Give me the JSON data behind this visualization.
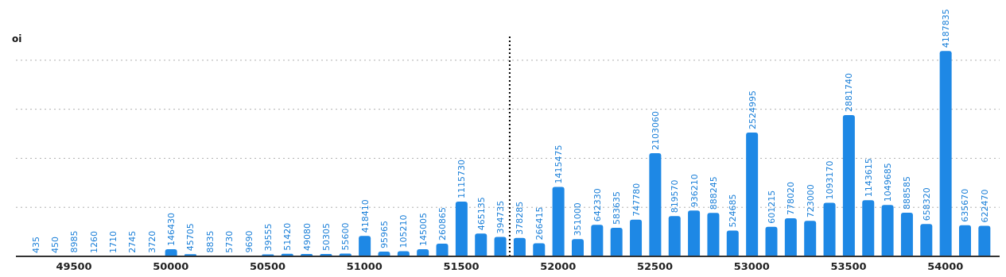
{
  "chart_data": {
    "type": "bar",
    "ylabel": "oi",
    "x": [
      49300,
      49400,
      49500,
      49600,
      49700,
      49800,
      49900,
      50000,
      50100,
      50200,
      50300,
      50400,
      50500,
      50600,
      50700,
      50800,
      50900,
      51000,
      51100,
      51200,
      51300,
      51400,
      51500,
      51600,
      51700,
      51800,
      51900,
      52000,
      52100,
      52200,
      52300,
      52400,
      52500,
      52600,
      52700,
      52800,
      52900,
      53000,
      53100,
      53200,
      53300,
      53400,
      53500,
      53600,
      53700,
      53800,
      53900,
      54000,
      54100,
      54200
    ],
    "values": [
      435,
      450,
      8985,
      1260,
      1710,
      2745,
      3720,
      146430,
      45705,
      8835,
      5730,
      9690,
      39555,
      51420,
      49080,
      50305,
      55600,
      418410,
      95965,
      105210,
      145005,
      260865,
      1115730,
      465135,
      394735,
      378285,
      266415,
      1415475,
      351000,
      642330,
      583635,
      747780,
      2103060,
      819570,
      936210,
      888245,
      524685,
      2524995,
      601215,
      778020,
      723000,
      1093170,
      2881740,
      1143615,
      1049685,
      888585,
      658320,
      4187835,
      635670,
      622470
    ],
    "color": "#1e88e5",
    "data_labels": true,
    "xlim": [
      49200,
      54280
    ],
    "xticks": [
      49500,
      50000,
      50500,
      51000,
      51500,
      52000,
      52500,
      53000,
      53500,
      54000
    ],
    "ylim": [
      0,
      4500000
    ],
    "yticks": [
      {
        "value": 1000000,
        "label": null
      },
      {
        "value": 2000000,
        "label": null
      },
      {
        "value": 3000000,
        "label": null
      },
      {
        "value": 4000000,
        "label": null
      }
    ],
    "tick_labels": "x",
    "grid": "y",
    "ref_lines": [
      {
        "axis": "x",
        "value": 51750,
        "color": "#000000",
        "line_style": "dotted"
      }
    ]
  }
}
